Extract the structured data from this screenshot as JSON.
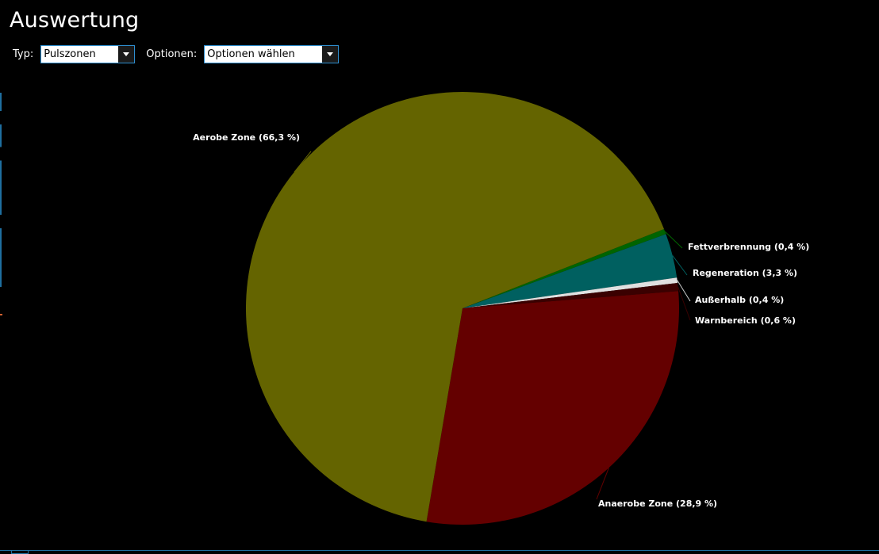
{
  "page": {
    "title": "Auswertung"
  },
  "controls": {
    "typ_label": "Typ:",
    "typ_value": "Pulszonen",
    "optionen_label": "Optionen:",
    "optionen_value": "Optionen wählen"
  },
  "chart_data": {
    "type": "pie",
    "title": "",
    "slices": [
      {
        "name": "Fettverbrennung",
        "value": 0.4,
        "label": "Fettverbrennung (0,4 %)",
        "color": "#006400"
      },
      {
        "name": "Regeneration",
        "value": 3.3,
        "label": "Regeneration (3,3 %)",
        "color": "#006060"
      },
      {
        "name": "Außerhalb",
        "value": 0.4,
        "label": "Außerhalb (0,4 %)",
        "color": "#e0e0e0"
      },
      {
        "name": "Warnbereich",
        "value": 0.6,
        "label": "Warnbereich (0,6 %)",
        "color": "#3a0000"
      },
      {
        "name": "Anaerobe Zone",
        "value": 28.9,
        "label": "Anaerobe Zone (28,9 %)",
        "color": "#640000"
      },
      {
        "name": "Aerobe Zone",
        "value": 66.3,
        "label": "Aerobe Zone (66,3 %)",
        "color": "#646400"
      }
    ],
    "legend": "none",
    "labels": "outside"
  }
}
